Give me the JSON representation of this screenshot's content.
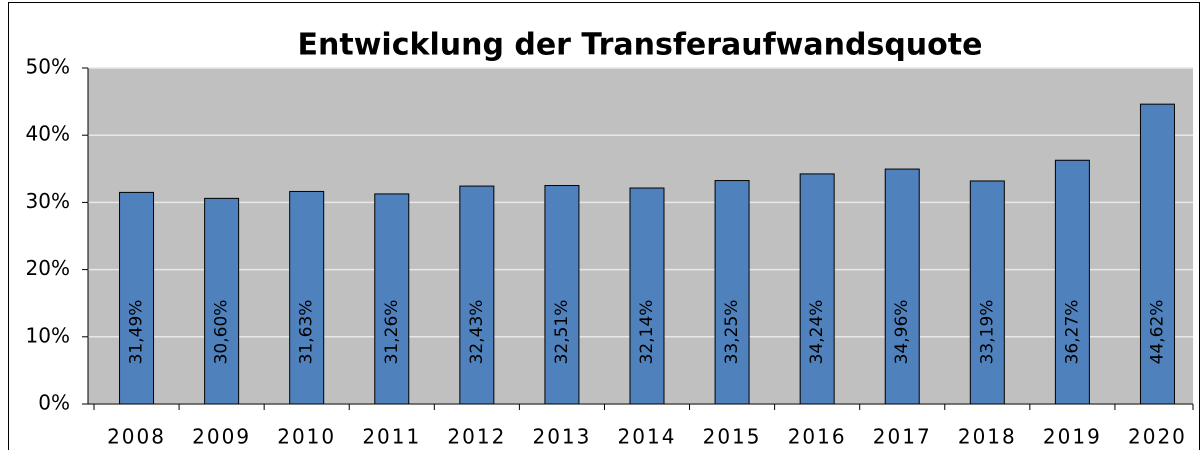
{
  "chart_data": {
    "type": "bar",
    "title": "Entwicklung der Transferaufwandsquote",
    "categories": [
      "2008",
      "2009",
      "2010",
      "2011",
      "2012",
      "2013",
      "2014",
      "2015",
      "2016",
      "2017",
      "2018",
      "2019",
      "2020"
    ],
    "values": [
      31.49,
      30.6,
      31.63,
      31.26,
      32.43,
      32.51,
      32.14,
      33.25,
      34.24,
      34.96,
      33.19,
      36.27,
      44.62
    ],
    "value_labels": [
      "31,49%",
      "30,60%",
      "31,63%",
      "31,26%",
      "32,43%",
      "32,51%",
      "32,14%",
      "33,25%",
      "34,24%",
      "34,96%",
      "33,19%",
      "36,27%",
      "44,62%"
    ],
    "color": "#4f81bd",
    "ylim": [
      0,
      50
    ],
    "yticks": [
      {
        "value": 0,
        "label": "0%"
      },
      {
        "value": 10,
        "label": "10%"
      },
      {
        "value": 20,
        "label": "20%"
      },
      {
        "value": 30,
        "label": "30%"
      },
      {
        "value": 40,
        "label": "40%"
      },
      {
        "value": 50,
        "label": "50%"
      }
    ],
    "grid": true
  }
}
